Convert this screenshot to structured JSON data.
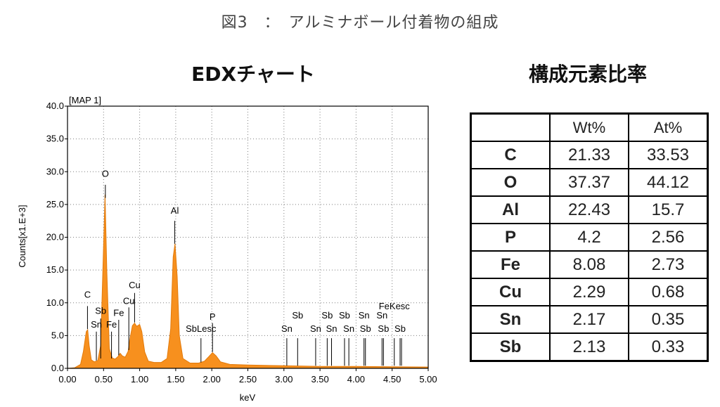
{
  "page_title": "図3　：　アルミナボール付着物の組成",
  "chart_heading": "EDXチャート",
  "table_heading": "構成元素比率",
  "colors": {
    "spectrum": "#f7901e",
    "spectrum_dark": "#e27a0b",
    "axis": "#000000",
    "grid": "#7f7f7f"
  },
  "chart_data": {
    "type": "area",
    "title": "[MAP 1]",
    "xlabel": "keV",
    "ylabel": "Counts[x1.E+3]",
    "xlim": [
      0,
      5
    ],
    "ylim": [
      0,
      40
    ],
    "x_ticks": [
      "0.00",
      "0.50",
      "1.00",
      "1.50",
      "2.00",
      "2.50",
      "3.00",
      "3.50",
      "4.00",
      "4.50",
      "5.00"
    ],
    "y_ticks": [
      "0.0",
      "5.0",
      "10.0",
      "15.0",
      "20.0",
      "25.0",
      "30.0",
      "35.0",
      "40.0"
    ],
    "grid": true,
    "series": [
      {
        "values": [
          [
            0.0,
            0.0
          ],
          [
            0.1,
            0.1
          ],
          [
            0.18,
            0.6
          ],
          [
            0.22,
            2.6
          ],
          [
            0.26,
            5.6
          ],
          [
            0.28,
            5.9
          ],
          [
            0.3,
            3.5
          ],
          [
            0.33,
            1.3
          ],
          [
            0.37,
            1.0
          ],
          [
            0.42,
            1.2
          ],
          [
            0.46,
            3.5
          ],
          [
            0.49,
            15.0
          ],
          [
            0.52,
            26.5
          ],
          [
            0.545,
            15.0
          ],
          [
            0.58,
            3.0
          ],
          [
            0.62,
            1.6
          ],
          [
            0.66,
            1.4
          ],
          [
            0.7,
            1.8
          ],
          [
            0.73,
            2.3
          ],
          [
            0.76,
            1.9
          ],
          [
            0.8,
            1.7
          ],
          [
            0.84,
            2.6
          ],
          [
            0.87,
            4.8
          ],
          [
            0.9,
            6.5
          ],
          [
            0.93,
            6.9
          ],
          [
            0.96,
            6.4
          ],
          [
            1.0,
            6.7
          ],
          [
            1.03,
            5.6
          ],
          [
            1.07,
            2.5
          ],
          [
            1.12,
            1.1
          ],
          [
            1.2,
            0.9
          ],
          [
            1.3,
            0.9
          ],
          [
            1.38,
            1.5
          ],
          [
            1.43,
            6.0
          ],
          [
            1.465,
            17.0
          ],
          [
            1.49,
            19.0
          ],
          [
            1.52,
            14.0
          ],
          [
            1.55,
            5.0
          ],
          [
            1.6,
            1.5
          ],
          [
            1.7,
            0.8
          ],
          [
            1.82,
            0.8
          ],
          [
            1.9,
            1.1
          ],
          [
            1.96,
            1.8
          ],
          [
            2.01,
            2.4
          ],
          [
            2.06,
            1.9
          ],
          [
            2.12,
            1.0
          ],
          [
            2.25,
            0.6
          ],
          [
            2.5,
            0.5
          ],
          [
            3.0,
            0.4
          ],
          [
            3.5,
            0.3
          ],
          [
            4.0,
            0.3
          ],
          [
            4.5,
            0.25
          ],
          [
            5.0,
            0.2
          ]
        ]
      }
    ],
    "annotations": [
      {
        "label": "C",
        "x": 0.277,
        "line_from": 9.5,
        "line_to": 6.0,
        "label_y": 10.8
      },
      {
        "label": "O",
        "x": 0.525,
        "line_from": 28.0,
        "line_to": 26.0,
        "label_y": 29.2
      },
      {
        "label": "Sb",
        "x": 0.46,
        "line_from": 7.6,
        "line_to": 1.5,
        "label_y": 8.3
      },
      {
        "label": "Sn",
        "x": 0.4,
        "line_from": 5.6,
        "line_to": 1.2,
        "label_y": 6.2
      },
      {
        "label": "Fe",
        "x": 0.71,
        "line_from": 7.4,
        "line_to": 2.0,
        "label_y": 8.0
      },
      {
        "label": "Fe",
        "x": 0.61,
        "line_from": 5.6,
        "line_to": 1.5,
        "label_y": 6.2
      },
      {
        "label": "Cu",
        "x": 0.85,
        "line_from": 9.3,
        "line_to": 2.8,
        "label_y": 9.8
      },
      {
        "label": "Cu",
        "x": 0.93,
        "line_from": 11.5,
        "line_to": 7.0,
        "label_y": 12.2
      },
      {
        "label": "Al",
        "x": 1.487,
        "line_from": 22.5,
        "line_to": 19.0,
        "label_y": 23.6
      },
      {
        "label": "SbLesc",
        "x": 1.85,
        "line_from": 4.6,
        "line_to": 0.9,
        "label_y": 5.6
      },
      {
        "label": "P",
        "x": 2.01,
        "line_from": 6.9,
        "line_to": 2.5,
        "label_y": 7.4
      },
      {
        "label": "Sn",
        "x": 3.04,
        "line_from": 4.6,
        "line_to": 0.4,
        "label_y": 5.6
      },
      {
        "label": "Sb",
        "x": 3.19,
        "line_from": 4.6,
        "line_to": 0.4,
        "label_y": 7.6
      },
      {
        "label": "Sn",
        "x": 3.44,
        "line_from": 4.6,
        "line_to": 0.4,
        "label_y": 5.6
      },
      {
        "label": "Sb",
        "x": 3.6,
        "line_from": 4.6,
        "line_to": 0.4,
        "label_y": 7.6
      },
      {
        "label": "Sn",
        "x": 3.66,
        "line_from": 4.6,
        "line_to": 0.4,
        "label_y": 5.6
      },
      {
        "label": "Sb",
        "x": 3.84,
        "line_from": 4.6,
        "line_to": 0.4,
        "label_y": 7.6
      },
      {
        "label": "Sn",
        "x": 3.9,
        "line_from": 4.6,
        "line_to": 0.4,
        "label_y": 5.6
      },
      {
        "label": "Sn",
        "x": 4.11,
        "line_from": 4.6,
        "line_to": 0.4,
        "label_y": 7.6
      },
      {
        "label": "Sb",
        "x": 4.13,
        "line_from": 4.6,
        "line_to": 0.4,
        "label_y": 5.6
      },
      {
        "label": "Sn",
        "x": 4.36,
        "line_from": 4.6,
        "line_to": 0.4,
        "label_y": 7.6
      },
      {
        "label": "Sb",
        "x": 4.38,
        "line_from": 4.6,
        "line_to": 0.4,
        "label_y": 5.6
      },
      {
        "label": "FeKesc",
        "x": 4.53,
        "line_from": 4.6,
        "line_to": 0.4,
        "label_y": 9.0
      },
      {
        "label": "Sb",
        "x": 4.61,
        "line_from": 4.6,
        "line_to": 0.4,
        "label_y": 5.6
      },
      {
        "label": "",
        "x": 4.63,
        "line_from": 4.6,
        "line_to": 0.4,
        "label_y": 5.6
      }
    ]
  },
  "table": {
    "headers": [
      "",
      "Wt%",
      "At%"
    ],
    "rows": [
      [
        "C",
        "21.33",
        "33.53"
      ],
      [
        "O",
        "37.37",
        "44.12"
      ],
      [
        "Al",
        "22.43",
        "15.7"
      ],
      [
        "P",
        "4.2",
        "2.56"
      ],
      [
        "Fe",
        "8.08",
        "2.73"
      ],
      [
        "Cu",
        "2.29",
        "0.68"
      ],
      [
        "Sn",
        "2.17",
        "0.35"
      ],
      [
        "Sb",
        "2.13",
        "0.33"
      ]
    ]
  }
}
